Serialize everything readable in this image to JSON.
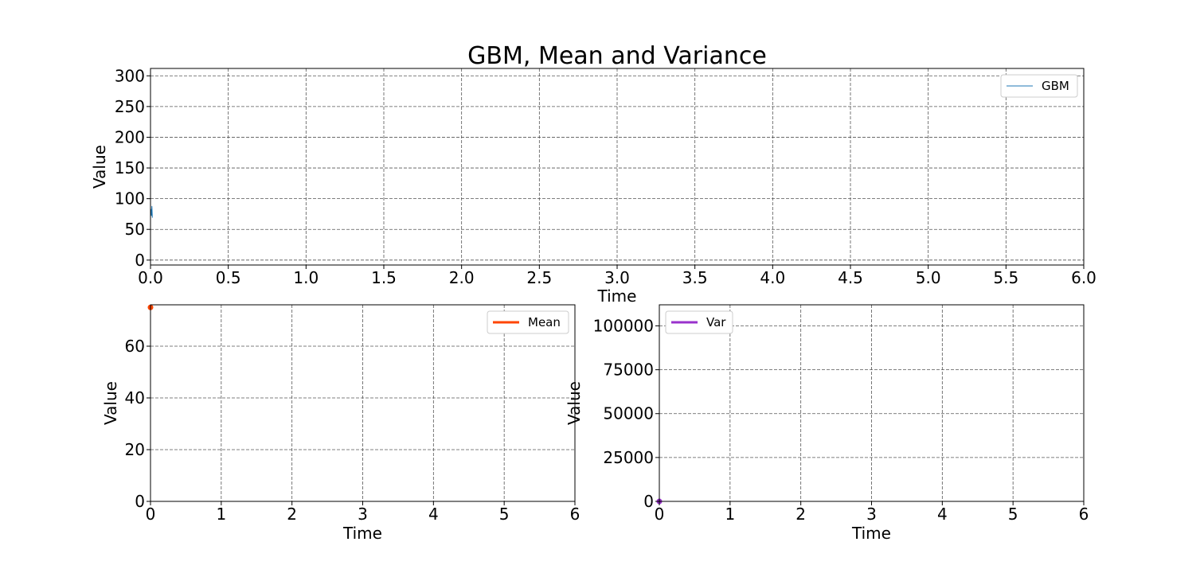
{
  "figure": {
    "title": "GBM, Mean and Variance"
  },
  "chart_data": [
    {
      "type": "line",
      "title": "GBM, Mean and Variance",
      "xlabel": "Time",
      "ylabel": "Value",
      "xlim": [
        0,
        6
      ],
      "ylim": [
        -8,
        312
      ],
      "xticks": [
        "0.0",
        "0.5",
        "1.0",
        "1.5",
        "2.0",
        "2.5",
        "3.0",
        "3.5",
        "4.0",
        "4.5",
        "5.0",
        "5.5",
        "6.0"
      ],
      "yticks": [
        "0",
        "50",
        "100",
        "150",
        "200",
        "250",
        "300"
      ],
      "grid": true,
      "legend_position": "top-right",
      "series": [
        {
          "name": "GBM",
          "color": "#1f77b4",
          "x": [
            0,
            0.003,
            0.006,
            0.009,
            0.012
          ],
          "y": [
            75,
            83,
            72,
            88,
            69
          ]
        }
      ]
    },
    {
      "type": "line",
      "xlabel": "Time",
      "ylabel": "Value",
      "xlim": [
        0,
        6
      ],
      "ylim": [
        0,
        76
      ],
      "xticks": [
        "0",
        "1",
        "2",
        "3",
        "4",
        "5",
        "6"
      ],
      "yticks": [
        "0",
        "20",
        "40",
        "60"
      ],
      "grid": true,
      "legend_position": "top-right",
      "series": [
        {
          "name": "Mean",
          "color": "#ff4500",
          "x": [
            0
          ],
          "y": [
            75
          ]
        }
      ]
    },
    {
      "type": "line",
      "xlabel": "Time",
      "ylabel": "Value",
      "xlim": [
        0,
        6
      ],
      "ylim": [
        0,
        112000
      ],
      "xticks": [
        "0",
        "1",
        "2",
        "3",
        "4",
        "5",
        "6"
      ],
      "yticks": [
        "0",
        "25000",
        "50000",
        "75000",
        "100000"
      ],
      "grid": true,
      "legend_position": "top-left",
      "series": [
        {
          "name": "Var",
          "color": "#9932cc",
          "x": [
            0
          ],
          "y": [
            0
          ]
        }
      ]
    }
  ]
}
